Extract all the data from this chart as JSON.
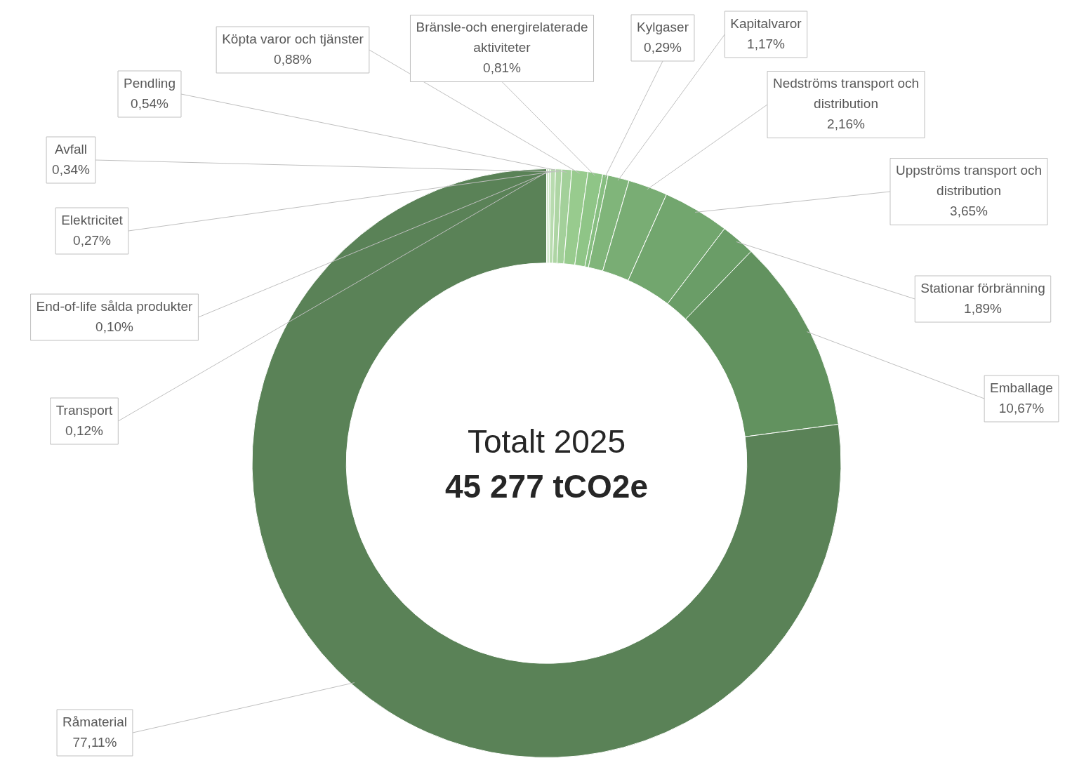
{
  "chart_data": {
    "type": "donut",
    "title": "Totalt 2025",
    "subtitle": "45 277 tCO2e",
    "categories": [
      "Transport",
      "End-of-life sålda produkter",
      "Elektricitet",
      "Avfall",
      "Pendling",
      "Köpta varor och tjänster",
      "Bränsle-och energirelaterade aktiviteter",
      "Kylgaser",
      "Kapitalvaror",
      "Nedströms transport och distribution",
      "Uppströms transport och distribution",
      "Stationar förbränning",
      "Emballage",
      "Råmaterial"
    ],
    "values": [
      0.12,
      0.1,
      0.27,
      0.34,
      0.54,
      0.88,
      0.81,
      0.29,
      1.17,
      2.16,
      3.65,
      1.89,
      10.67,
      77.11
    ],
    "value_labels": [
      "0,12%",
      "0,10%",
      "0,27%",
      "0,34%",
      "0,54%",
      "0,88%",
      "0,81%",
      "0,29%",
      "1,17%",
      "2,16%",
      "3,65%",
      "1,89%",
      "10,67%",
      "77,11%"
    ],
    "colors": [
      "#cfe6c8",
      "#c3e0bb",
      "#b8dbaf",
      "#aed5a4",
      "#a3d09a",
      "#98cb8e",
      "#8fc587",
      "#87be81",
      "#80b57a",
      "#79ad74",
      "#72a66e",
      "#6a9d67",
      "#62925f",
      "#5a8257"
    ],
    "legend": false
  }
}
